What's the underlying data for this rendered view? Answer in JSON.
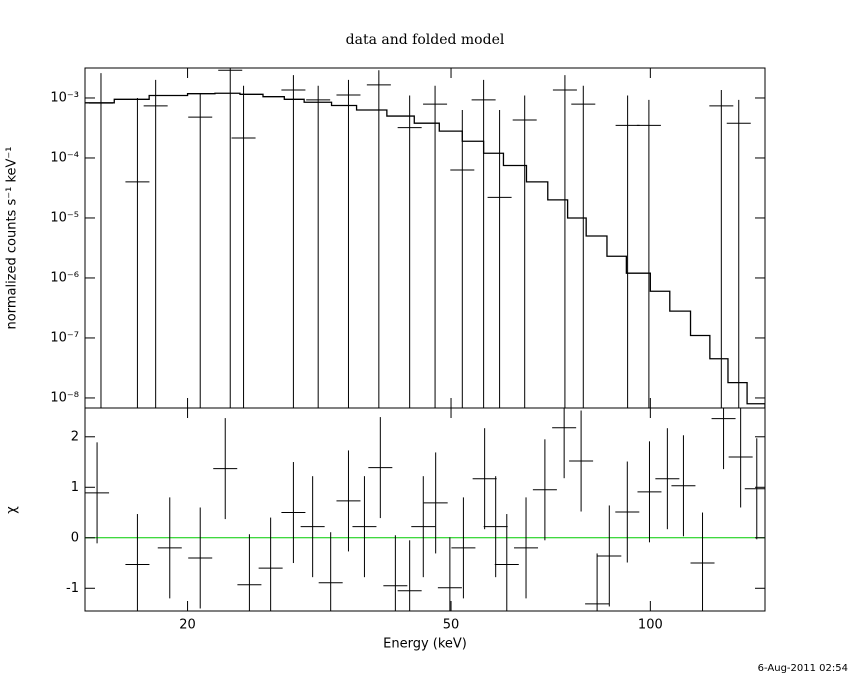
{
  "chart_data": [
    {
      "type": "scatter",
      "title": "data and folded model",
      "ylabel": "normalized counts s⁻¹ keV⁻¹",
      "log_x": true,
      "log_y": true,
      "xlim": [
        14,
        149
      ],
      "ylim": [
        6.8e-09,
        0.00316
      ],
      "yticks": [
        {
          "value": 1e-08,
          "label": "10⁻⁸"
        },
        {
          "value": 1e-07,
          "label": "10⁻⁷"
        },
        {
          "value": 1e-06,
          "label": "10⁻⁶"
        },
        {
          "value": 1e-05,
          "label": "10⁻⁵"
        },
        {
          "value": 0.0001,
          "label": "10⁻⁴"
        },
        {
          "value": 0.001,
          "label": "10⁻³"
        }
      ],
      "series": [
        {
          "style": "crosses",
          "color": "#000000",
          "x": [
            14.8,
            16.8,
            17.9,
            20.9,
            23.2,
            24.3,
            28.9,
            31.5,
            35.0,
            38.9,
            43.3,
            47.3,
            52.0,
            56.0,
            59.2,
            64.6,
            74.3,
            79.2,
            92.4,
            99.5,
            128,
            136
          ],
          "values": [
            0.00082,
            4e-05,
            0.00074,
            0.00048,
            0.0029,
            0.000215,
            0.00136,
            0.00093,
            0.00112,
            0.00165,
            0.00032,
            0.00079,
            6.3e-05,
            0.00093,
            2.2e-05,
            0.00043,
            0.00136,
            0.00079,
            0.00035,
            0.00035,
            0.00074,
            0.00038
          ],
          "upper": [
            0.0026,
            0.001,
            0.002,
            0.0012,
            0.0031,
            0.0016,
            0.0024,
            0.0016,
            0.002,
            0.0029,
            0.0011,
            0.0016,
            0.00063,
            0.002,
            0.00063,
            0.0011,
            0.0024,
            0.0016,
            0.0011,
            0.00093,
            0.00136,
            0.00093
          ]
        },
        {
          "style": "step",
          "color": "#000000",
          "x": [
            14,
            15.5,
            17.5,
            20,
            22,
            24,
            26,
            28,
            30,
            33,
            36,
            40,
            44,
            48,
            52,
            56,
            60,
            65,
            70,
            75,
            80,
            86,
            92,
            100,
            107,
            115,
            123,
            131,
            140,
            149
          ],
          "values": [
            0.00083,
            0.00095,
            0.0011,
            0.00118,
            0.0012,
            0.00115,
            0.00105,
            0.00095,
            0.00085,
            0.00075,
            0.00063,
            0.0005,
            0.00038,
            0.00028,
            0.00019,
            0.00012,
            7.5e-05,
            4e-05,
            2e-05,
            1e-05,
            5e-06,
            2.3e-06,
            1.2e-06,
            6e-07,
            2.8e-07,
            1.1e-07,
            4.5e-08,
            1.8e-08,
            8e-09,
            6.8e-09
          ]
        }
      ]
    },
    {
      "type": "scatter",
      "ylabel": "χ",
      "xlabel": "Energy (keV)",
      "log_x": true,
      "xlim": [
        14,
        149
      ],
      "ylim": [
        -1.45,
        2.57
      ],
      "xticks": [
        20,
        50,
        100
      ],
      "yticks": [
        -1,
        0,
        1,
        2
      ],
      "error": 1,
      "zero_line": {
        "value": 0,
        "color": "#00cc00"
      },
      "series": [
        {
          "style": "crosses",
          "color": "#000000",
          "x": [
            14.6,
            16.8,
            18.8,
            20.9,
            22.8,
            24.8,
            26.7,
            28.9,
            30.9,
            32.9,
            35.0,
            37.0,
            39.1,
            41.2,
            43.3,
            45.4,
            47.4,
            49.8,
            52.2,
            56.2,
            58.4,
            60.7,
            64.9,
            69.3,
            74.1,
            78.6,
            83.1,
            86.7,
            92.3,
            99.7,
            106.1,
            112.2,
            119.9,
            129.0,
            136.9,
            144.8
          ],
          "values": [
            0.89,
            -0.53,
            -0.2,
            -0.4,
            1.37,
            -0.93,
            -0.6,
            0.5,
            0.22,
            -0.89,
            0.73,
            0.22,
            1.39,
            -0.95,
            -1.05,
            0.22,
            0.69,
            -0.99,
            -0.2,
            1.17,
            0.22,
            -0.53,
            -0.2,
            0.95,
            2.18,
            1.52,
            -1.31,
            -0.36,
            0.51,
            0.91,
            1.17,
            1.03,
            -0.5,
            2.36,
            1.6,
            0.97
          ]
        }
      ]
    }
  ],
  "timestamp": "6-Aug-2011 02:54"
}
